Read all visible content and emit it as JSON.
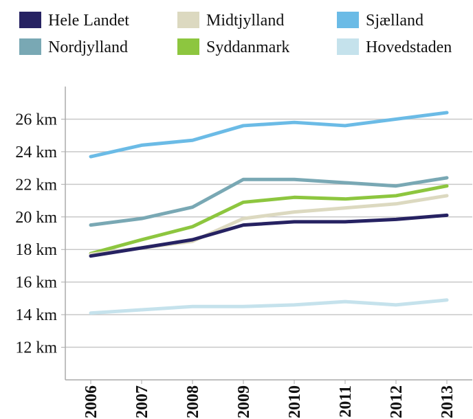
{
  "chart_data": {
    "type": "line",
    "categories": [
      "2006",
      "2007",
      "2008",
      "2009",
      "2010",
      "2011",
      "2012",
      "2013"
    ],
    "series": [
      {
        "name": "Hele Landet",
        "color": "#262262",
        "values": [
          17.6,
          18.1,
          18.6,
          19.5,
          19.7,
          19.7,
          19.85,
          20.1
        ]
      },
      {
        "name": "Midtjylland",
        "color": "#dcd9c0",
        "values": [
          17.7,
          18.1,
          18.5,
          19.9,
          20.3,
          20.55,
          20.8,
          21.3
        ]
      },
      {
        "name": "Sjælland",
        "color": "#6bbbe6",
        "values": [
          23.7,
          24.4,
          24.7,
          25.6,
          25.8,
          25.6,
          26.0,
          26.4
        ]
      },
      {
        "name": "Nordjylland",
        "color": "#79a8b4",
        "values": [
          19.5,
          19.9,
          20.6,
          22.3,
          22.3,
          22.1,
          21.9,
          22.4
        ]
      },
      {
        "name": "Syddanmark",
        "color": "#8dc63f",
        "values": [
          17.75,
          18.6,
          19.4,
          20.9,
          21.2,
          21.1,
          21.3,
          21.9
        ]
      },
      {
        "name": "Hovedstaden",
        "color": "#c5e2ec",
        "values": [
          14.1,
          14.3,
          14.5,
          14.5,
          14.6,
          14.8,
          14.6,
          14.9
        ]
      }
    ],
    "ylim": [
      10,
      28
    ],
    "yticks": [
      {
        "value": 12,
        "label": "12 km"
      },
      {
        "value": 14,
        "label": "14 km"
      },
      {
        "value": 16,
        "label": "16 km"
      },
      {
        "value": 18,
        "label": "18 km"
      },
      {
        "value": 20,
        "label": "20 km"
      },
      {
        "value": 22,
        "label": "22 km"
      },
      {
        "value": 24,
        "label": "24 km"
      },
      {
        "value": 26,
        "label": "26 km"
      }
    ],
    "grid": true
  }
}
